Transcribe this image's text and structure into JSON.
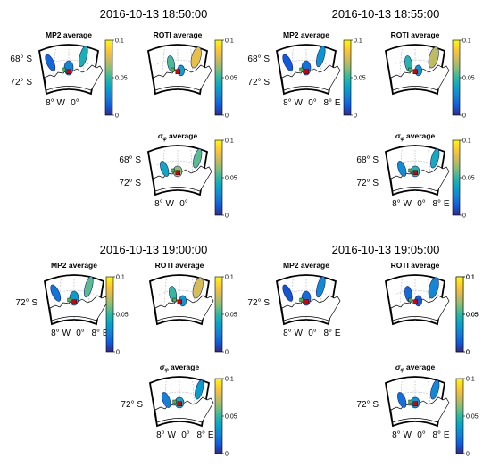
{
  "panel_titles": {
    "mp2": "MP2 average",
    "roti": "ROTI average",
    "sigma_symbol": "σ",
    "sigma_subscript": "φ",
    "sigma_suffix": "average"
  },
  "colorbar": {
    "ticks": [
      "0.1",
      "0.05",
      "0"
    ],
    "colormap": "parula",
    "colors": [
      "#352a87",
      "#0f5cdd",
      "#1481d6",
      "#06a4ca",
      "#2eb7a4",
      "#87bf77",
      "#d1bb59",
      "#fec832",
      "#f9fb0e"
    ]
  },
  "colors": {
    "station_red": "#d40000",
    "coast": "#000000"
  },
  "chart_data": [
    {
      "type": "heatmap",
      "time": "2016-10-13 18:50:00",
      "panels": [
        "MP2 average",
        "ROTI average",
        "σφ average"
      ],
      "lat_labels": [
        "68° S",
        "72° S"
      ],
      "lon_labels": [
        "8° W",
        "0°"
      ],
      "clim": [
        0,
        0.1
      ],
      "peak_values": {
        "mp2": 0.055,
        "roti": 0.09,
        "sigma_phi": 0.08
      }
    },
    {
      "type": "heatmap",
      "time": "2016-10-13 18:55:00",
      "panels": [
        "MP2 average",
        "ROTI average",
        "σφ average"
      ],
      "lat_labels": [
        "68° S",
        "72° S"
      ],
      "lon_labels": [
        "8° W",
        "0°",
        "8° E"
      ],
      "clim": [
        0,
        0.1
      ],
      "peak_values": {
        "mp2": 0.04,
        "roti": 0.08,
        "sigma_phi": 0.06
      }
    },
    {
      "type": "heatmap",
      "time": "2016-10-13 19:00:00",
      "panels": [
        "MP2 average",
        "ROTI average",
        "σφ average"
      ],
      "lat_labels": [
        "72° S"
      ],
      "lon_labels": [
        "8° W",
        "0°",
        "8° E"
      ],
      "clim": [
        0,
        0.1
      ],
      "peak_values": {
        "mp2": 0.07,
        "roti": 0.085,
        "sigma_phi": 0.05
      }
    },
    {
      "type": "heatmap",
      "time": "2016-10-13 19:05:00",
      "panels": [
        "MP2 average",
        "ROTI average",
        "σφ average"
      ],
      "lat_labels": [
        "72° S"
      ],
      "lon_labels": [
        "8° W",
        "0°",
        "8° E"
      ],
      "clim": [
        0,
        0.1
      ],
      "peak_values": {
        "mp2": 0.035,
        "roti": 0.03,
        "sigma_phi": 0.04
      }
    }
  ]
}
